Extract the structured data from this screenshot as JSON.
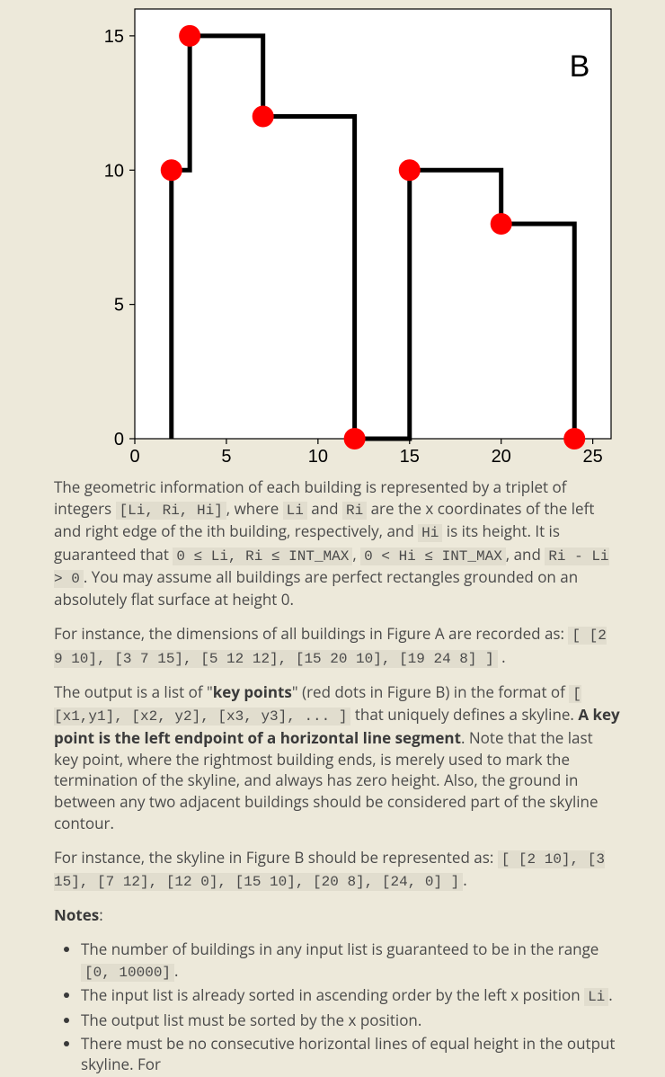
{
  "chart": {
    "panel_label": "B",
    "panel_label_fontsize": 34,
    "background": "#ffffff",
    "border_color": "#000000",
    "line_color": "#000000",
    "line_width": 5,
    "dot_color": "#ff0000",
    "dot_radius": 12,
    "tick_color": "#000000",
    "tick_label_color": "#000000",
    "tick_fontsize": 20,
    "xlim": [
      0,
      26
    ],
    "ylim": [
      0,
      16
    ],
    "xticks": [
      0,
      5,
      10,
      15,
      20,
      25
    ],
    "yticks": [
      0,
      5,
      10,
      15
    ],
    "skyline_path": [
      [
        2,
        0
      ],
      [
        2,
        10
      ],
      [
        3,
        10
      ],
      [
        3,
        15
      ],
      [
        7,
        15
      ],
      [
        7,
        12
      ],
      [
        12,
        12
      ],
      [
        12,
        0
      ],
      [
        15,
        0
      ],
      [
        15,
        10
      ],
      [
        20,
        10
      ],
      [
        20,
        8
      ],
      [
        24,
        8
      ],
      [
        24,
        0
      ]
    ],
    "key_points": [
      [
        2,
        10
      ],
      [
        3,
        15
      ],
      [
        7,
        12
      ],
      [
        12,
        0
      ],
      [
        15,
        10
      ],
      [
        20,
        8
      ],
      [
        24,
        0
      ]
    ]
  },
  "para1": {
    "t1": "The geometric information of each building is represented by a triplet of integers ",
    "c1": "[Li, Ri, Hi]",
    "t2": ", where ",
    "c2": "Li",
    "t3": " and ",
    "c3": "Ri",
    "t4": " are the x coordinates of the left and right edge of the ith building, respectively, and ",
    "c4": "Hi",
    "t5": " is its height. It is guaranteed that ",
    "c5": "0 ≤ Li, Ri ≤ INT_MAX",
    "t6": ", ",
    "c6": "0 < Hi ≤ INT_MAX",
    "t7": ", and ",
    "c7": "Ri - Li > 0",
    "t8": ". You may assume all buildings are perfect rectangles grounded on an absolutely flat surface at height 0."
  },
  "para2": {
    "t1": "For instance, the dimensions of all buildings in Figure A are recorded as: ",
    "c1": "[ [2 9 10], [3 7 15], [5 12 12], [15 20 10], [19 24 8] ]",
    "t2": " ."
  },
  "para3": {
    "t1": "The output is a list of \"",
    "b1": "key points",
    "t2": "\" (red dots in Figure B) in the format of ",
    "c1": "[ [x1,y1], [x2, y2], [x3, y3], ... ]",
    "t3": " that uniquely defines a skyline. ",
    "b2": "A key point is the left endpoint of a horizontal line segment",
    "t4": ". Note that the last key point, where the rightmost building ends, is merely used to mark the termination of the skyline, and always has zero height. Also, the ground in between any two adjacent buildings should be considered part of the skyline contour."
  },
  "para4": {
    "t1": "For instance, the skyline in Figure B should be represented as: ",
    "c1": "[ [2 10], [3 15], [7 12], [12 0], [15 10], [20 8], [24, 0] ]",
    "t2": "."
  },
  "notes_label": "Notes",
  "notes_colon": ":",
  "notes": {
    "n1a": "The number of buildings in any input list is guaranteed to be in the range ",
    "n1c": "[0, 10000]",
    "n1b": ".",
    "n2a": "The input list is already sorted in ascending order by the left x position ",
    "n2c": "Li",
    "n2b": ".",
    "n3": "The output list must be sorted by the x position.",
    "n4": "There must be no consecutive horizontal lines of equal height in the output skyline. For"
  }
}
